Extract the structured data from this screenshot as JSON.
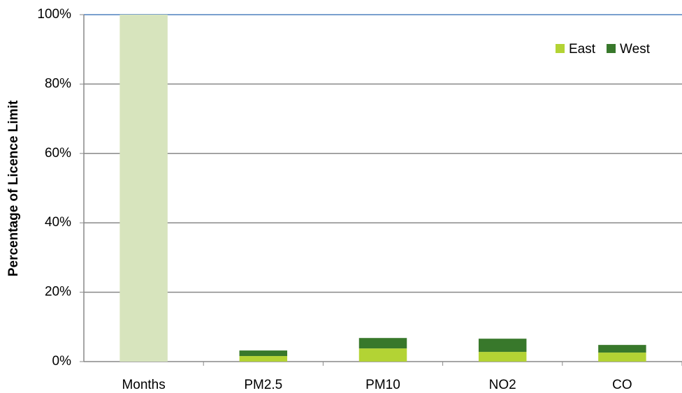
{
  "chart_data": {
    "type": "stacked_bar",
    "y_label": "Percentage of Licence Limit",
    "categories": [
      "Months",
      "PM2.5",
      "PM10",
      "NO2",
      "CO"
    ],
    "series": [
      {
        "color": "#d7e4bd",
        "values": [
          100,
          null,
          null,
          null,
          null
        ]
      },
      {
        "name": "East",
        "color": "#b3d334",
        "values": [
          null,
          1.6,
          3.8,
          2.8,
          2.6
        ]
      },
      {
        "name": "West",
        "color": "#38782b",
        "values": [
          null,
          1.6,
          3.0,
          3.8,
          2.2
        ]
      }
    ],
    "ylim": [
      0,
      100
    ],
    "yticks": [
      {
        "value": 0,
        "label": "0%"
      },
      {
        "value": 20,
        "label": "20%"
      },
      {
        "value": 40,
        "label": "40%"
      },
      {
        "value": 60,
        "label": "60%"
      },
      {
        "value": 80,
        "label": "80%"
      },
      {
        "value": 100,
        "label": "100%"
      }
    ],
    "grid": true,
    "legend": "top-right"
  }
}
